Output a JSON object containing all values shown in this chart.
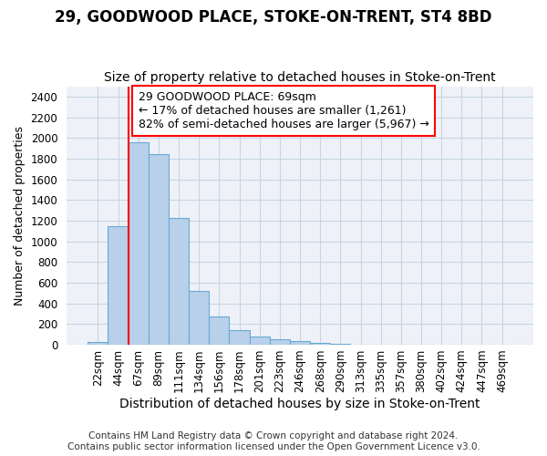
{
  "title": "29, GOODWOOD PLACE, STOKE-ON-TRENT, ST4 8BD",
  "subtitle": "Size of property relative to detached houses in Stoke-on-Trent",
  "xlabel": "Distribution of detached houses by size in Stoke-on-Trent",
  "ylabel": "Number of detached properties",
  "bar_labels": [
    "22sqm",
    "44sqm",
    "67sqm",
    "89sqm",
    "111sqm",
    "134sqm",
    "156sqm",
    "178sqm",
    "201sqm",
    "223sqm",
    "246sqm",
    "268sqm",
    "290sqm",
    "313sqm",
    "335sqm",
    "357sqm",
    "380sqm",
    "402sqm",
    "424sqm",
    "447sqm",
    "469sqm"
  ],
  "bar_values": [
    25,
    1150,
    1960,
    1840,
    1230,
    520,
    270,
    145,
    80,
    50,
    35,
    15,
    5,
    0,
    0,
    0,
    0,
    0,
    0,
    0,
    0
  ],
  "bar_color": "#b8d0ea",
  "bar_edge_color": "#6aaad4",
  "vline_x_index": 2,
  "vline_color": "red",
  "annotation_text": "29 GOODWOOD PLACE: 69sqm\n← 17% of detached houses are smaller (1,261)\n82% of semi-detached houses are larger (5,967) →",
  "annotation_box_color": "white",
  "annotation_box_edge": "red",
  "ylim": [
    0,
    2500
  ],
  "yticks": [
    0,
    200,
    400,
    600,
    800,
    1000,
    1200,
    1400,
    1600,
    1800,
    2000,
    2200,
    2400
  ],
  "footer_line1": "Contains HM Land Registry data © Crown copyright and database right 2024.",
  "footer_line2": "Contains public sector information licensed under the Open Government Licence v3.0.",
  "title_fontsize": 12,
  "subtitle_fontsize": 10,
  "xlabel_fontsize": 10,
  "ylabel_fontsize": 9,
  "tick_fontsize": 8.5,
  "annotation_fontsize": 9,
  "footer_fontsize": 7.5,
  "grid_color": "#c8d4e4",
  "bg_color": "#eef2f8"
}
